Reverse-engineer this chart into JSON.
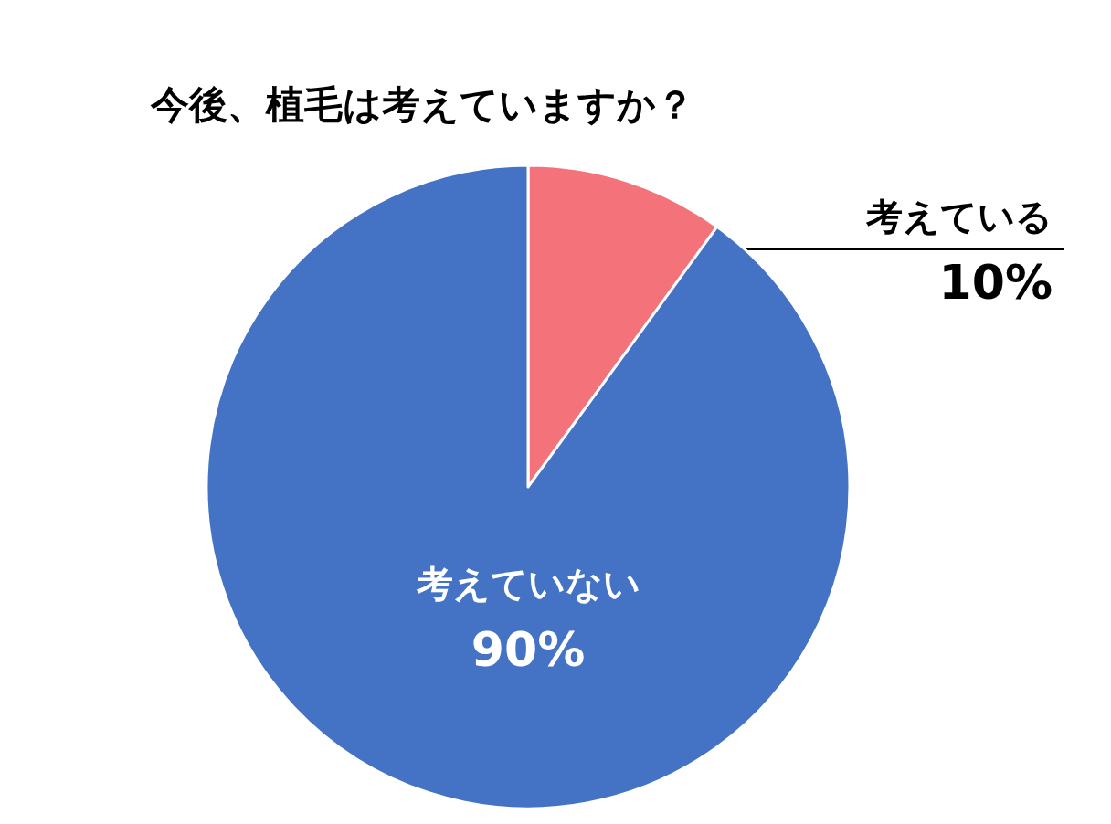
{
  "chart_data": {
    "type": "pie",
    "title": "今後、植毛は考えていますか？",
    "categories": [
      "考えている",
      "考えていない"
    ],
    "values": [
      10,
      90
    ],
    "colors": [
      "#f4737a",
      "#4472c4"
    ],
    "value_labels": [
      "10%",
      "90%"
    ]
  }
}
